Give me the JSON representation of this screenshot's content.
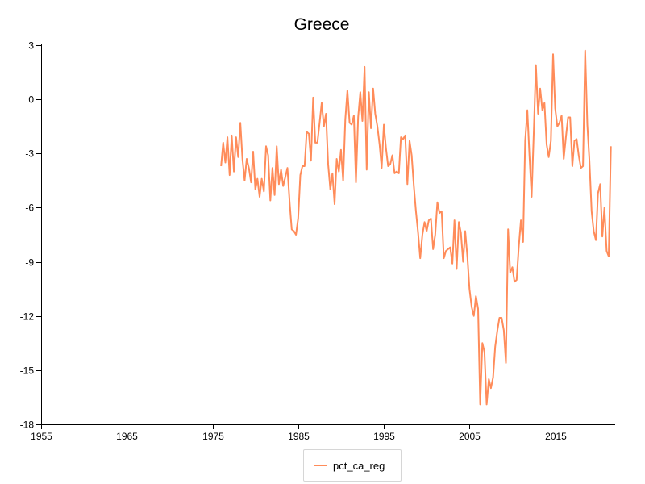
{
  "chart_data": {
    "type": "line",
    "title": "Greece",
    "xlabel": "",
    "ylabel": "",
    "xlim": [
      1955,
      2022
    ],
    "ylim": [
      -18,
      3
    ],
    "x_ticks": [
      1955,
      1965,
      1975,
      1985,
      1995,
      2005,
      2015
    ],
    "y_ticks": [
      3,
      0,
      -3,
      -6,
      -9,
      -12,
      -15,
      -18
    ],
    "grid": false,
    "legend_position": "bottom-center",
    "series": [
      {
        "name": "pct_ca_reg",
        "color": "#ff8c5a",
        "x_start": 1976.0,
        "x_step": 0.25,
        "values": [
          -3.7,
          -2.4,
          -3.5,
          -2.1,
          -4.2,
          -2.0,
          -4.0,
          -2.1,
          -3.2,
          -1.3,
          -3.3,
          -4.5,
          -3.3,
          -3.8,
          -4.6,
          -2.9,
          -5.0,
          -4.4,
          -5.4,
          -4.4,
          -5.1,
          -2.6,
          -3.1,
          -5.6,
          -3.8,
          -5.3,
          -2.6,
          -4.7,
          -3.9,
          -4.8,
          -4.3,
          -3.8,
          -5.7,
          -7.2,
          -7.3,
          -7.5,
          -6.6,
          -4.2,
          -3.7,
          -3.7,
          -1.8,
          -1.9,
          -3.4,
          0.1,
          -2.4,
          -2.4,
          -1.3,
          -0.2,
          -1.5,
          -0.8,
          -3.6,
          -5.0,
          -4.1,
          -5.8,
          -3.3,
          -4.0,
          -2.8,
          -4.5,
          -1.1,
          0.5,
          -1.3,
          -1.4,
          -0.9,
          -4.6,
          -1.0,
          0.4,
          -1.2,
          1.8,
          -3.9,
          0.4,
          -1.6,
          0.6,
          -0.8,
          -1.5,
          -2.5,
          -3.8,
          -1.4,
          -2.7,
          -3.7,
          -3.6,
          -3.1,
          -4.1,
          -4.0,
          -4.1,
          -2.1,
          -2.2,
          -2.0,
          -4.7,
          -2.3,
          -3.1,
          -4.8,
          -6.2,
          -7.4,
          -8.8,
          -7.5,
          -6.8,
          -7.3,
          -6.7,
          -6.6,
          -8.3,
          -7.5,
          -5.7,
          -6.3,
          -6.2,
          -8.8,
          -8.4,
          -8.3,
          -8.2,
          -9.1,
          -6.7,
          -9.4,
          -6.8,
          -7.4,
          -9.0,
          -7.3,
          -8.7,
          -10.5,
          -11.5,
          -12.0,
          -10.9,
          -11.6,
          -16.9,
          -13.5,
          -14.0,
          -16.9,
          -15.5,
          -16.0,
          -15.4,
          -13.7,
          -12.8,
          -12.1,
          -12.1,
          -12.8,
          -14.6,
          -7.2,
          -9.6,
          -9.3,
          -10.1,
          -10.0,
          -8.2,
          -6.7,
          -7.9,
          -2.3,
          -0.6,
          -3.1,
          -5.4,
          -1.9,
          1.9,
          -0.8,
          0.6,
          -0.6,
          -0.2,
          -2.5,
          -3.2,
          -2.3,
          2.5,
          -0.5,
          -1.5,
          -1.3,
          -0.9,
          -3.3,
          -2.1,
          -1.0,
          -1.0,
          -3.7,
          -2.3,
          -2.2,
          -3.1,
          -3.8,
          -3.7,
          2.7,
          -1.4,
          -3.4,
          -6.2,
          -7.3,
          -7.8,
          -5.2,
          -4.7,
          -7.6,
          -6.0,
          -8.4,
          -8.7,
          -2.6
        ]
      }
    ]
  }
}
